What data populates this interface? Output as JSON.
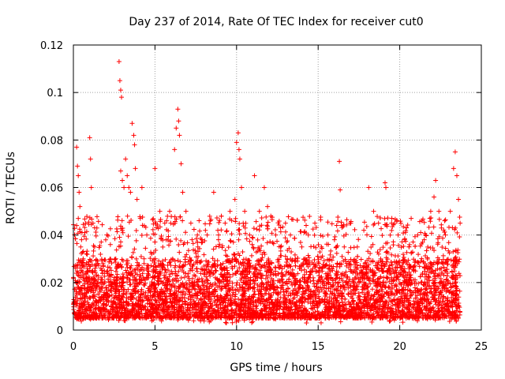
{
  "chart_data": {
    "type": "scatter",
    "title": "Day 237 of 2014, Rate Of TEC Index for receiver cut0",
    "xlabel": "GPS time / hours",
    "ylabel": "ROTI / TECUs",
    "xlim": [
      0,
      25
    ],
    "ylim": [
      0,
      0.12
    ],
    "xticks": [
      0,
      5,
      10,
      15,
      20,
      25
    ],
    "xtick_labels": [
      "0",
      "5",
      "10",
      "15",
      "20",
      "25"
    ],
    "yticks": [
      0,
      0.02,
      0.04,
      0.06,
      0.08,
      0.1,
      0.12
    ],
    "ytick_labels": [
      "0",
      "0.02",
      "0.04",
      "0.06",
      "0.08",
      "0.1",
      "0.12"
    ],
    "grid": true,
    "marker": "+",
    "series_color": "#ff0000",
    "points": [
      [
        0.1,
        0.012
      ],
      [
        0.2,
        0.044
      ],
      [
        0.2,
        0.077
      ],
      [
        0.25,
        0.069
      ],
      [
        0.3,
        0.065
      ],
      [
        0.3,
        0.047
      ],
      [
        0.35,
        0.058
      ],
      [
        0.4,
        0.052
      ],
      [
        0.5,
        0.038
      ],
      [
        0.6,
        0.03
      ],
      [
        0.7,
        0.041
      ],
      [
        0.8,
        0.022
      ],
      [
        0.9,
        0.025
      ],
      [
        1.0,
        0.081
      ],
      [
        1.05,
        0.072
      ],
      [
        1.1,
        0.06
      ],
      [
        1.2,
        0.045
      ],
      [
        1.3,
        0.035
      ],
      [
        1.5,
        0.028
      ],
      [
        1.7,
        0.02
      ],
      [
        2.0,
        0.018
      ],
      [
        2.3,
        0.02
      ],
      [
        2.6,
        0.03
      ],
      [
        2.8,
        0.113
      ],
      [
        2.85,
        0.105
      ],
      [
        2.9,
        0.101
      ],
      [
        2.95,
        0.098
      ],
      [
        2.9,
        0.067
      ],
      [
        3.0,
        0.063
      ],
      [
        3.1,
        0.06
      ],
      [
        3.2,
        0.072
      ],
      [
        3.3,
        0.065
      ],
      [
        3.4,
        0.06
      ],
      [
        3.5,
        0.058
      ],
      [
        3.6,
        0.087
      ],
      [
        3.7,
        0.082
      ],
      [
        3.75,
        0.078
      ],
      [
        3.8,
        0.068
      ],
      [
        3.9,
        0.055
      ],
      [
        4.1,
        0.047
      ],
      [
        4.2,
        0.06
      ],
      [
        4.5,
        0.04
      ],
      [
        4.8,
        0.032
      ],
      [
        5.0,
        0.068
      ],
      [
        5.3,
        0.05
      ],
      [
        5.6,
        0.045
      ],
      [
        5.9,
        0.05
      ],
      [
        6.2,
        0.076
      ],
      [
        6.3,
        0.085
      ],
      [
        6.4,
        0.093
      ],
      [
        6.45,
        0.088
      ],
      [
        6.5,
        0.082
      ],
      [
        6.6,
        0.07
      ],
      [
        6.7,
        0.058
      ],
      [
        6.9,
        0.05
      ],
      [
        7.2,
        0.045
      ],
      [
        7.6,
        0.04
      ],
      [
        7.9,
        0.037
      ],
      [
        8.2,
        0.04
      ],
      [
        8.4,
        0.046
      ],
      [
        8.6,
        0.058
      ],
      [
        8.9,
        0.04
      ],
      [
        9.3,
        0.045
      ],
      [
        9.6,
        0.05
      ],
      [
        9.9,
        0.055
      ],
      [
        10.0,
        0.079
      ],
      [
        10.1,
        0.083
      ],
      [
        10.15,
        0.076
      ],
      [
        10.2,
        0.072
      ],
      [
        10.3,
        0.06
      ],
      [
        10.5,
        0.05
      ],
      [
        10.8,
        0.04
      ],
      [
        11.1,
        0.065
      ],
      [
        11.4,
        0.05
      ],
      [
        11.7,
        0.06
      ],
      [
        11.9,
        0.052
      ],
      [
        12.1,
        0.048
      ],
      [
        12.4,
        0.04
      ],
      [
        12.7,
        0.035
      ],
      [
        13.0,
        0.045
      ],
      [
        13.3,
        0.04
      ],
      [
        13.6,
        0.03
      ],
      [
        14.0,
        0.035
      ],
      [
        14.4,
        0.04
      ],
      [
        14.8,
        0.045
      ],
      [
        15.2,
        0.035
      ],
      [
        15.6,
        0.04
      ],
      [
        16.0,
        0.038
      ],
      [
        16.3,
        0.071
      ],
      [
        16.35,
        0.059
      ],
      [
        16.6,
        0.035
      ],
      [
        17.0,
        0.045
      ],
      [
        17.4,
        0.035
      ],
      [
        17.8,
        0.042
      ],
      [
        18.1,
        0.06
      ],
      [
        18.4,
        0.05
      ],
      [
        18.7,
        0.045
      ],
      [
        19.1,
        0.062
      ],
      [
        19.15,
        0.06
      ],
      [
        19.5,
        0.045
      ],
      [
        19.9,
        0.04
      ],
      [
        20.3,
        0.038
      ],
      [
        20.7,
        0.047
      ],
      [
        21.1,
        0.04
      ],
      [
        21.5,
        0.038
      ],
      [
        21.9,
        0.05
      ],
      [
        22.1,
        0.056
      ],
      [
        22.2,
        0.063
      ],
      [
        22.4,
        0.05
      ],
      [
        22.8,
        0.04
      ],
      [
        23.1,
        0.05
      ],
      [
        23.3,
        0.068
      ],
      [
        23.4,
        0.075
      ],
      [
        23.5,
        0.065
      ],
      [
        23.6,
        0.055
      ],
      [
        23.7,
        0.045
      ]
    ],
    "dense_band": {
      "x_range": [
        0,
        23.7
      ],
      "bulk_min": 0.005,
      "bulk_max": 0.03,
      "lower_floor": 0.003
    }
  }
}
